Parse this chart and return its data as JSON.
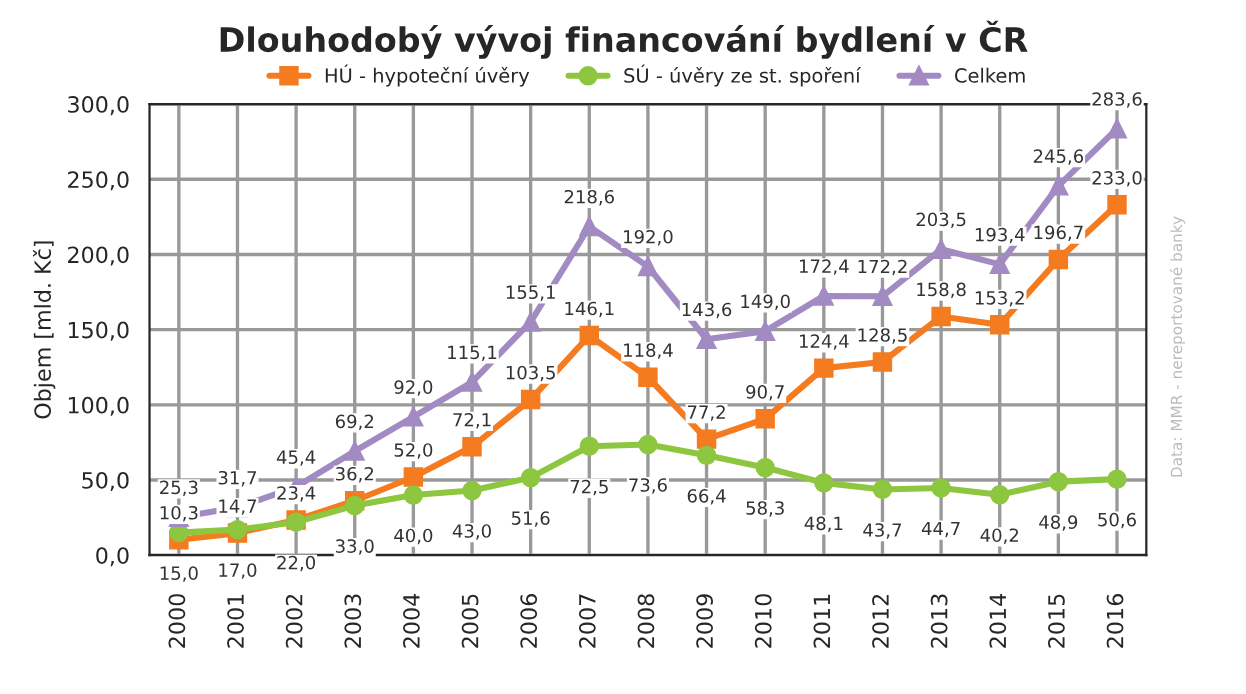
{
  "chart_data": {
    "type": "line",
    "title": "Dlouhodobý vývoj financování bydlení v ČR",
    "ylabel": "Objem [mld. Kč]",
    "categories": [
      "2000",
      "2001",
      "2002",
      "2003",
      "2004",
      "2005",
      "2006",
      "2007",
      "2008",
      "2009",
      "2010",
      "2011",
      "2012",
      "2013",
      "2014",
      "2015",
      "2016"
    ],
    "series": [
      {
        "name": "HÚ - hypoteční úvěry",
        "color": "#f47b20",
        "marker": "square",
        "values": [
          10.3,
          14.7,
          23.4,
          36.2,
          52.0,
          72.1,
          103.5,
          146.1,
          118.4,
          77.2,
          90.7,
          124.4,
          128.5,
          158.8,
          153.2,
          196.7,
          233.0
        ],
        "value_labels": [
          "10,3",
          "14,7",
          "23,4",
          "36,2",
          "52,0",
          "72,1",
          "103,5",
          "146,1",
          "118,4",
          "77,2",
          "90,7",
          "124,4",
          "128,5",
          "158,8",
          "153,2",
          "196,7",
          "233,0"
        ]
      },
      {
        "name": "SÚ - úvěry ze st. spoření",
        "color": "#8dc63f",
        "marker": "circle",
        "values": [
          15.0,
          17.0,
          22.0,
          33.0,
          40.0,
          43.0,
          51.6,
          72.5,
          73.6,
          66.4,
          58.3,
          48.1,
          43.7,
          44.7,
          40.2,
          48.9,
          50.6
        ],
        "value_labels": [
          "15,0",
          "17,0",
          "22,0",
          "33,0",
          "40,0",
          "43,0",
          "51,6",
          "72,5",
          "73,6",
          "66,4",
          "58,3",
          "48,1",
          "43,7",
          "44,7",
          "40,2",
          "48,9",
          "50,6"
        ]
      },
      {
        "name": "Celkem",
        "color": "#a28ac2",
        "marker": "triangle",
        "values": [
          25.3,
          31.7,
          45.4,
          69.2,
          92.0,
          115.1,
          155.1,
          218.6,
          192.0,
          143.6,
          149.0,
          172.4,
          172.2,
          203.5,
          193.4,
          245.6,
          283.6
        ],
        "value_labels": [
          "25,3",
          "31,7",
          "45,4",
          "69,2",
          "92,0",
          "115,1",
          "155,1",
          "218,6",
          "192,0",
          "143,6",
          "149,0",
          "172,4",
          "172,2",
          "203,5",
          "193,4",
          "245,6",
          "283,6"
        ]
      }
    ],
    "ylim": [
      0,
      300
    ],
    "yticks": [
      {
        "value": 0,
        "label": "0,0"
      },
      {
        "value": 50,
        "label": "50,0"
      },
      {
        "value": 100,
        "label": "100,0"
      },
      {
        "value": 150,
        "label": "150,0"
      },
      {
        "value": 200,
        "label": "200,0"
      },
      {
        "value": 250,
        "label": "250,0"
      },
      {
        "value": 300,
        "label": "300,0"
      }
    ],
    "grid": true,
    "legend": "top",
    "line_style": "solid",
    "annotations": [
      "Data: MMR - nereportované banky"
    ]
  }
}
